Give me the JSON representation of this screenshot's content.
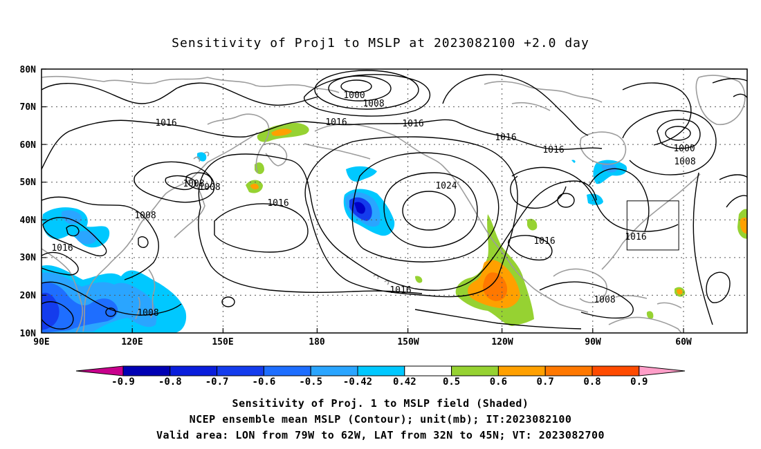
{
  "title": "Sensitivity of Proj1 to MSLP at 2023082100 +2.0 day",
  "map": {
    "projection": "cylindrical equidistant",
    "lon_ticks": [
      "90E",
      "120E",
      "150E",
      "180",
      "150W",
      "120W",
      "90W",
      "60W"
    ],
    "lat_ticks": [
      "80N",
      "70N",
      "60N",
      "50N",
      "40N",
      "30N",
      "20N",
      "10N"
    ],
    "grid": true,
    "contour_labels": {
      "c1000a": "1000",
      "c1008a": "1008",
      "c1016a": "1016",
      "c1016b": "1016",
      "c1016c": "1016",
      "c1016d": "1016",
      "c1008b": "1008",
      "c1008c": "1008",
      "c1016e": "1016",
      "c1016f": "1016",
      "c1024": "1024",
      "c1016g": "1016",
      "c1016h": "1016",
      "c1008d": "1008",
      "c1016i": "1016",
      "c1000b": "1000",
      "c1008e": "1008",
      "c1016j": "1016",
      "c1008f": "1008"
    },
    "shading_colors": {
      "neg_090": "#0000c8",
      "neg_080": "#0a1edc",
      "neg_070": "#143ced",
      "neg_060": "#1e6eff",
      "neg_050": "#2aa5ff",
      "neg_042": "#00c8ff",
      "pos_042": "#96d232",
      "pos_050": "#ffa000",
      "pos_060": "#ff7800",
      "pos_070": "#ff5000"
    }
  },
  "colorbar": {
    "labels": [
      "-0.9",
      "-0.8",
      "-0.7",
      "-0.6",
      "-0.5",
      "-0.42",
      "0.42",
      "0.5",
      "0.6",
      "0.7",
      "0.8",
      "0.9"
    ],
    "colors": [
      "#0000b4",
      "#0a1edc",
      "#143ced",
      "#1e6eff",
      "#2aa5ff",
      "#00c8ff",
      "#ffffff",
      "#96d232",
      "#ffa000",
      "#ff7800",
      "#ff4b00",
      "#ff0000",
      "#ff0000"
    ],
    "low_end_color": "#c8008c",
    "high_end_color": "#ff9ec8"
  },
  "caption": {
    "line1": "Sensitivity of Proj. 1 to MSLP field (Shaded)",
    "line2": "NCEP ensemble mean MSLP (Contour); unit(mb); IT:2023082100",
    "line3": "Valid area: LON from 79W to 62W, LAT from 32N to 45N; VT: 2023082700"
  }
}
